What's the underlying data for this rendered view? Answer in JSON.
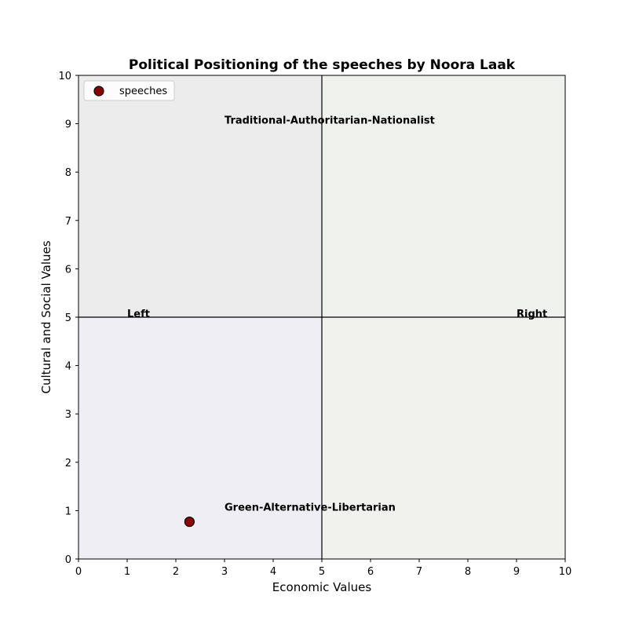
{
  "chart_data": {
    "type": "scatter",
    "title": "Political Positioning of the speeches by Noora Laak",
    "xlabel": "Economic Values",
    "ylabel": "Cultural and Social Values",
    "xlim": [
      0,
      10
    ],
    "ylim": [
      0,
      10
    ],
    "x_ticks": [
      "0",
      "1",
      "2",
      "3",
      "4",
      "5",
      "6",
      "7",
      "8",
      "9",
      "10"
    ],
    "y_ticks": [
      "0",
      "1",
      "2",
      "3",
      "4",
      "5",
      "6",
      "7",
      "8",
      "9",
      "10"
    ],
    "grid": false,
    "divider_lines": {
      "x": 5,
      "y": 5
    },
    "quadrant_colors": {
      "top_left": "#ececed",
      "top_right": "#eff1ec",
      "bottom_left": "#efeef4",
      "bottom_right": "#f1f2ed"
    },
    "series": [
      {
        "name": "speeches",
        "color": "#8b0000",
        "edge_color": "#000000",
        "points": [
          {
            "x": 2.28,
            "y": 0.77
          }
        ]
      }
    ],
    "annotations": [
      {
        "text": "Traditional-Authoritarian-Nationalist",
        "x": 3.0,
        "y": 9.0
      },
      {
        "text": "Green-Alternative-Libertarian",
        "x": 3.0,
        "y": 1.0
      },
      {
        "text": "Left",
        "x": 1.0,
        "y": 5.0
      },
      {
        "text": "Right",
        "x": 9.0,
        "y": 5.0
      }
    ],
    "legend": {
      "position": "upper-left",
      "entries": [
        "speeches"
      ]
    }
  }
}
